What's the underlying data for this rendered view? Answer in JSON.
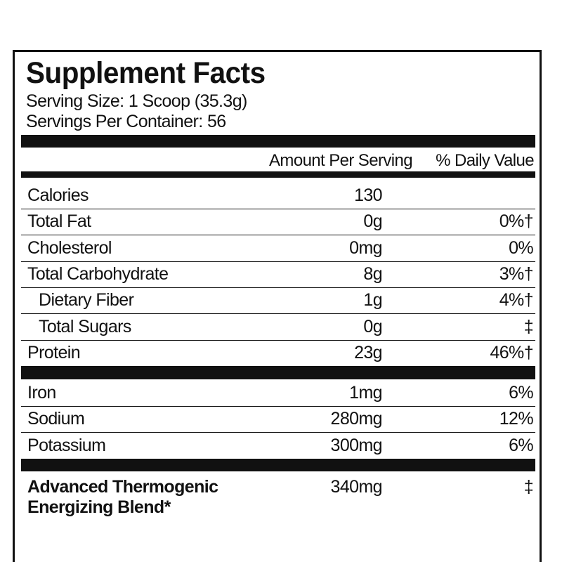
{
  "title": "Supplement Facts",
  "serving_size": "Serving Size: 1 Scoop (35.3g)",
  "servings_per_container": "Servings Per Container: 56",
  "header": {
    "amount": "Amount Per Serving",
    "daily_value": "% Daily Value"
  },
  "sections": [
    {
      "rows": [
        {
          "name": "Calories",
          "amount": "130"
        },
        {
          "name": "Total Fat",
          "amount": "0g",
          "daily_value": "0%†"
        },
        {
          "name": "Cholesterol",
          "amount": "0mg",
          "daily_value": "0%"
        },
        {
          "name": "Total Carbohydrate",
          "amount": "8g",
          "daily_value": "3%†"
        },
        {
          "name": "Dietary Fiber",
          "amount": "1g",
          "daily_value": "4%†",
          "indent": true
        },
        {
          "name": "Total Sugars",
          "amount": "0g",
          "daily_value": "‡",
          "indent": true
        },
        {
          "name": "Protein",
          "amount": "23g",
          "daily_value": "46%†"
        }
      ]
    },
    {
      "rows": [
        {
          "name": "Iron",
          "amount": "1mg",
          "daily_value": "6%"
        },
        {
          "name": "Sodium",
          "amount": "280mg",
          "daily_value": "12%"
        },
        {
          "name": "Potassium",
          "amount": "300mg",
          "daily_value": "6%"
        }
      ]
    },
    {
      "rows": [
        {
          "name_lines": [
            "Advanced Thermogenic",
            "Energizing Blend*"
          ],
          "bold": true,
          "amount": "340mg",
          "daily_value": "‡"
        }
      ]
    }
  ]
}
